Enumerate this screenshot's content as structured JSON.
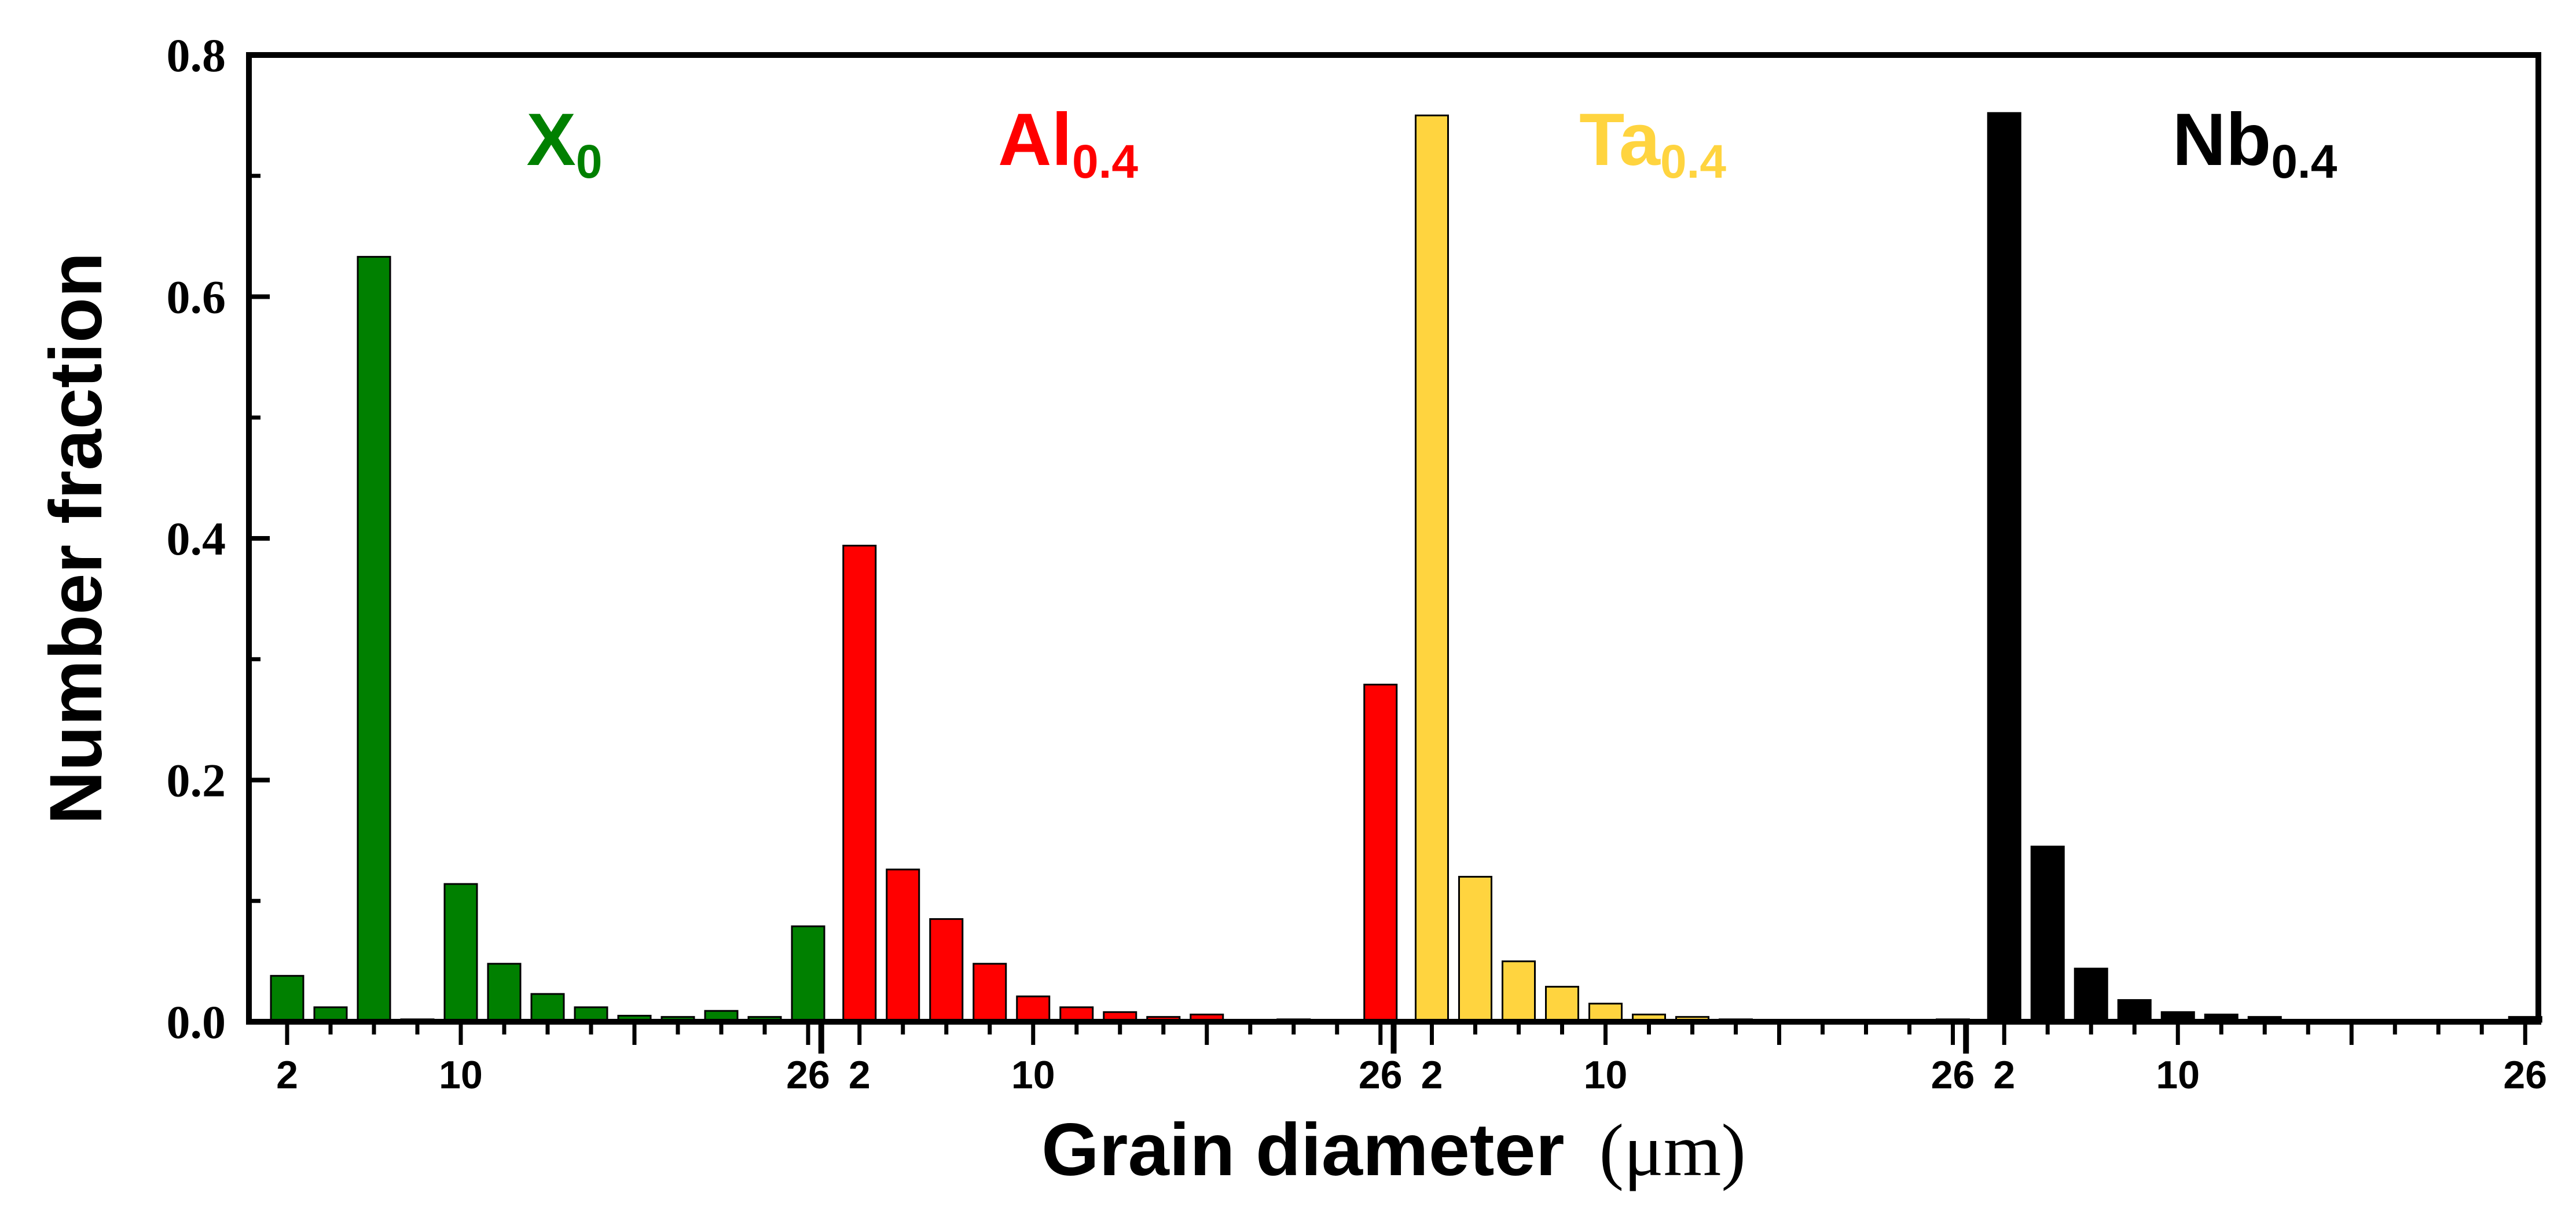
{
  "chart_data": {
    "type": "bar",
    "title": "",
    "xlabel": "Grain diameter",
    "xlabel_unit": "(μm)",
    "ylabel": "Number fraction",
    "ylim": [
      0,
      0.8
    ],
    "yticks": [
      "0.0",
      "0.2",
      "0.4",
      "0.6",
      "0.8"
    ],
    "xtick_labels": [
      "2",
      "10",
      "26"
    ],
    "x": [
      2,
      4,
      6,
      8,
      10,
      12,
      14,
      16,
      18,
      20,
      22,
      24,
      26
    ],
    "series": [
      {
        "name": "X",
        "subscript": "0",
        "color": "#008000",
        "values": [
          0.038,
          0.012,
          0.633,
          0.002,
          0.114,
          0.048,
          0.023,
          0.012,
          0.005,
          0.004,
          0.009,
          0.004,
          0.079
        ]
      },
      {
        "name": "Al",
        "subscript": "0.4",
        "color": "#ff0000",
        "values": [
          0.394,
          0.126,
          0.085,
          0.048,
          0.021,
          0.012,
          0.008,
          0.004,
          0.006,
          0.001,
          0.002,
          0.001,
          0.279
        ]
      },
      {
        "name": "Ta",
        "subscript": "0.4",
        "color": "#ffd43f",
        "values": [
          0.75,
          0.12,
          0.05,
          0.029,
          0.015,
          0.006,
          0.004,
          0.002,
          0.001,
          0.001,
          0.001,
          0.001,
          0.002
        ]
      },
      {
        "name": "Nb",
        "subscript": "0.4",
        "color": "#000000",
        "values": [
          0.752,
          0.145,
          0.044,
          0.018,
          0.008,
          0.006,
          0.004,
          0.001,
          0.001,
          0.001,
          0.001,
          0.001,
          0.004
        ]
      }
    ]
  }
}
